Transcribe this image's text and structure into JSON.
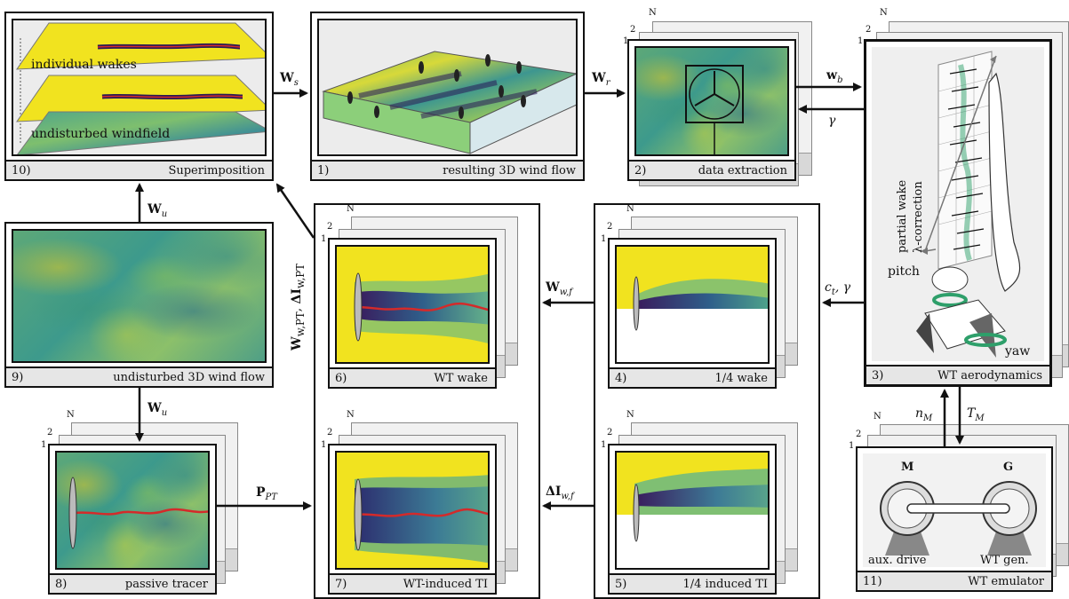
{
  "panels": {
    "p10": {
      "num": "10)",
      "title": "Superimposition",
      "top_label": "individual wakes",
      "bottom_label": "undisturbed windfield"
    },
    "p1": {
      "num": "1)",
      "title": "resulting 3D wind flow"
    },
    "p2": {
      "num": "2)",
      "title": "data extraction"
    },
    "p3": {
      "num": "3)",
      "title": "WT aerodynamics",
      "annot_1": "partial wake",
      "annot_2": "λ-correction",
      "pitch": "pitch",
      "yaw": "yaw"
    },
    "p9": {
      "num": "9)",
      "title": "undisturbed 3D wind flow"
    },
    "p6": {
      "num": "6)",
      "title": "WT wake"
    },
    "p4": {
      "num": "4)",
      "title": "1/4 wake"
    },
    "p8": {
      "num": "8)",
      "title": "passive tracer"
    },
    "p7": {
      "num": "7)",
      "title": "WT-induced TI"
    },
    "p5": {
      "num": "5)",
      "title": "1/4 induced TI"
    },
    "p11": {
      "num": "11)",
      "title": "WT emulator",
      "motor": "M",
      "generator": "G",
      "aux": "aux. drive",
      "gen": "WT gen."
    }
  },
  "stack_indices": {
    "n": "N",
    "two": "2",
    "one": "1"
  },
  "signals": {
    "ws": {
      "main": "W",
      "sub": "s"
    },
    "wr": {
      "main": "W",
      "sub": "r"
    },
    "wb": {
      "main": "w",
      "sub": "b"
    },
    "gamma": "γ",
    "wu_top": {
      "main": "W",
      "sub": "u"
    },
    "wu_bottom": {
      "main": "W",
      "sub": "u"
    },
    "vertical": {
      "a": "W",
      "a_sub": "w,PT",
      "b": "ΔI",
      "b_sub": "w,PT"
    },
    "wwf": {
      "main": "W",
      "sub": "w,f"
    },
    "ct_gamma": {
      "main": "c",
      "sub": "t",
      "rest": ", γ"
    },
    "ppt": {
      "main": "P",
      "sub": "PT"
    },
    "dIwf": {
      "main": "ΔI",
      "sub": "w,f"
    },
    "nm": {
      "main": "n",
      "sub": "M"
    },
    "tm": {
      "main": "T",
      "sub": "M"
    }
  },
  "colors": {
    "wake_red": "#d42a2a",
    "deficit": "#3a1a5c",
    "yellow": "#f1e31f",
    "green": "#2e9f6a",
    "caption_bg": "#e6e6e6"
  }
}
